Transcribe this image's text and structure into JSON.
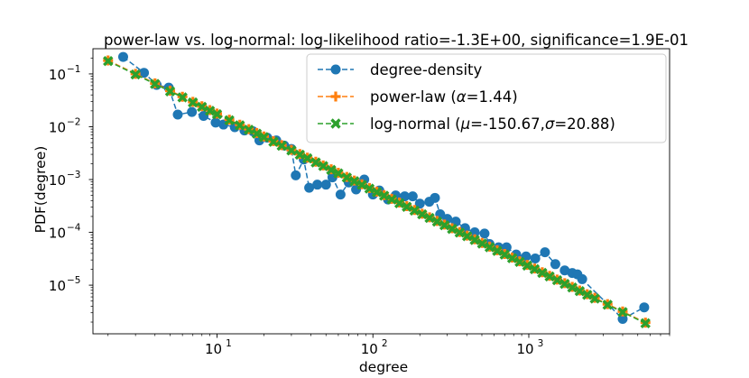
{
  "chart_data": {
    "type": "line",
    "title": "power-law vs. log-normal: log-likelihood ratio=-1.3E+00, significance=1.9E-01",
    "xlabel": "degree",
    "ylabel": "PDF(degree)",
    "xscale": "log",
    "yscale": "log",
    "xlim": [
      1.6,
      8000
    ],
    "ylim": [
      1.2e-06,
      0.3
    ],
    "grid": false,
    "legend_position": "upper right",
    "x_ticks": [
      {
        "value": 10,
        "base": "10",
        "exp": "1"
      },
      {
        "value": 100,
        "base": "10",
        "exp": "2"
      },
      {
        "value": 1000,
        "base": "10",
        "exp": "3"
      }
    ],
    "y_ticks": [
      {
        "value": 0.1,
        "base": "10",
        "exp": "−1"
      },
      {
        "value": 0.01,
        "base": "10",
        "exp": "−2"
      },
      {
        "value": 0.001,
        "base": "10",
        "exp": "−3"
      },
      {
        "value": 0.0001,
        "base": "10",
        "exp": "−4"
      },
      {
        "value": 1e-05,
        "base": "10",
        "exp": "−5"
      }
    ],
    "series": [
      {
        "name": "degree-density",
        "color": "#1f77b4",
        "marker": "circle",
        "linestyle": "dashed",
        "points": [
          [
            2.5,
            0.21
          ],
          [
            3.4,
            0.105
          ],
          [
            4.1,
            0.062
          ],
          [
            4.9,
            0.055
          ],
          [
            5.6,
            0.017
          ],
          [
            6.9,
            0.019
          ],
          [
            8.2,
            0.016
          ],
          [
            9.8,
            0.012
          ],
          [
            11,
            0.011
          ],
          [
            13,
            0.0098
          ],
          [
            15,
            0.0085
          ],
          [
            17,
            0.0082
          ],
          [
            18.7,
            0.0055
          ],
          [
            21,
            0.0062
          ],
          [
            24,
            0.0055
          ],
          [
            27,
            0.0044
          ],
          [
            30,
            0.0038
          ],
          [
            32,
            0.0012
          ],
          [
            36,
            0.0024
          ],
          [
            39,
            0.0007
          ],
          [
            44,
            0.0008
          ],
          [
            50,
            0.0008
          ],
          [
            55,
            0.0011
          ],
          [
            62,
            0.00052
          ],
          [
            70,
            0.00088
          ],
          [
            78,
            0.00065
          ],
          [
            88,
            0.001
          ],
          [
            100,
            0.00052
          ],
          [
            110,
            0.00062
          ],
          [
            125,
            0.00042
          ],
          [
            140,
            0.0005
          ],
          [
            160,
            0.00048
          ],
          [
            180,
            0.00048
          ],
          [
            200,
            0.00035
          ],
          [
            230,
            0.00038
          ],
          [
            250,
            0.00045
          ],
          [
            270,
            0.00022
          ],
          [
            300,
            0.00018
          ],
          [
            340,
            0.00016
          ],
          [
            390,
            0.00012
          ],
          [
            450,
            0.0001
          ],
          [
            520,
            9.5e-05
          ],
          [
            560,
            6e-05
          ],
          [
            640,
            5.2e-05
          ],
          [
            720,
            5.2e-05
          ],
          [
            830,
            3.8e-05
          ],
          [
            960,
            3.5e-05
          ],
          [
            1100,
            3.2e-05
          ],
          [
            1270,
            4.2e-05
          ],
          [
            1480,
            2.5e-05
          ],
          [
            1700,
            1.9e-05
          ],
          [
            1900,
            1.7e-05
          ],
          [
            2050,
            1.6e-05
          ],
          [
            2200,
            1.3e-05
          ],
          [
            4000,
            2.3e-06
          ],
          [
            5500,
            3.8e-06
          ]
        ]
      },
      {
        "name": "power-law (α=1.44)",
        "label_prefix": "power-law (",
        "label_math": [
          {
            "sym": "α",
            "italic": true
          },
          {
            "sym": "=1.44",
            "italic": false
          }
        ],
        "label_suffix": ")",
        "color": "#ff7f0e",
        "marker": "plus",
        "linestyle": "dashed",
        "alpha": 1.44,
        "x_samples": [
          2,
          3,
          4,
          5,
          6,
          7,
          8,
          9,
          10,
          12,
          14,
          16,
          18,
          20,
          23,
          26,
          30,
          34,
          38,
          43,
          48,
          54,
          60,
          68,
          76,
          85,
          95,
          106,
          118,
          132,
          148,
          165,
          185,
          207,
          231,
          258,
          288,
          322,
          360,
          402,
          450,
          502,
          561,
          627,
          700,
          782,
          874,
          977,
          1090,
          1220,
          1360,
          1520,
          1700,
          1900,
          2120,
          2370,
          2650,
          3200,
          4000,
          5600
        ],
        "y_at_2": 0.18
      },
      {
        "name": "log-normal (μ=-150.67,σ=20.88)",
        "color": "#2ca02c",
        "marker": "x-thick",
        "linestyle": "dashed",
        "x_samples": [
          2,
          3,
          4,
          5,
          6,
          7,
          8,
          9,
          10,
          12,
          14,
          16,
          18,
          20,
          23,
          26,
          30,
          34,
          38,
          43,
          48,
          54,
          60,
          68,
          76,
          85,
          95,
          106,
          118,
          132,
          148,
          165,
          185,
          207,
          231,
          258,
          288,
          322,
          360,
          402,
          450,
          502,
          561,
          627,
          700,
          782,
          874,
          977,
          1090,
          1220,
          1360,
          1520,
          1700,
          1900,
          2120,
          2370,
          2650,
          3200,
          4000,
          5600
        ],
        "y_at_2": 0.175
      }
    ],
    "legend": [
      {
        "text": "degree-density",
        "parts": [
          {
            "t": "degree-density",
            "i": false
          }
        ]
      },
      {
        "text": "power-law (α=1.44)",
        "parts": [
          {
            "t": "power-law (",
            "i": false
          },
          {
            "t": "α",
            "i": true
          },
          {
            "t": "=1.44)",
            "i": false
          }
        ]
      },
      {
        "text": "log-normal (μ=-150.67,σ=20.88)",
        "parts": [
          {
            "t": "log-normal (",
            "i": false
          },
          {
            "t": "μ",
            "i": true
          },
          {
            "t": "=-150.67,",
            "i": false
          },
          {
            "t": "σ",
            "i": true
          },
          {
            "t": "=20.88)",
            "i": false
          }
        ]
      }
    ]
  }
}
